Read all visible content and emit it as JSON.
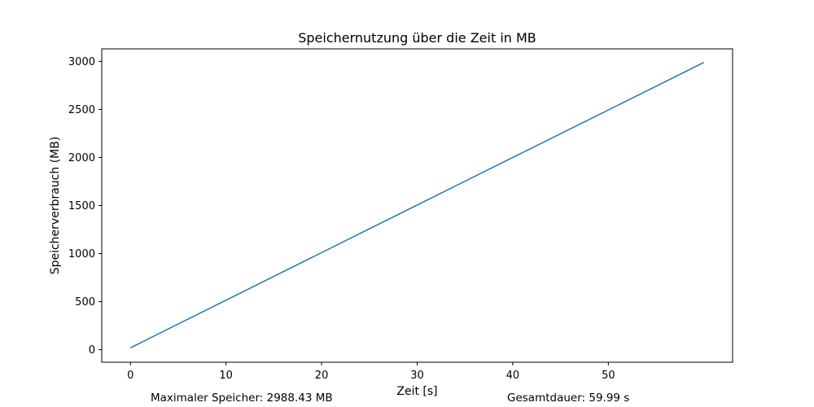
{
  "chart_data": {
    "type": "line",
    "title": "Speichernutzung über die Zeit in MB",
    "xlabel": "Zeit [s]",
    "ylabel": "Speicherverbrauch (MB)",
    "xlim": [
      -3.0,
      63.0
    ],
    "ylim": [
      -130,
      3130
    ],
    "x_ticks": [
      0,
      10,
      20,
      30,
      40,
      50
    ],
    "y_ticks": [
      0,
      500,
      1000,
      1500,
      2000,
      2500,
      3000
    ],
    "grid": false,
    "series": [
      {
        "color": "#1f77b4",
        "x": [
          0,
          5,
          10,
          15,
          20,
          25,
          30,
          35,
          40,
          45,
          50,
          55,
          59.99
        ],
        "y": [
          20,
          268,
          515,
          763,
          1010,
          1258,
          1505,
          1753,
          2000,
          2247,
          2494,
          2741,
          2988.43
        ]
      }
    ]
  },
  "footer": {
    "max_memory": "Maximaler Speicher: 2988.43 MB",
    "duration": "Gesamtdauer: 59.99 s"
  }
}
